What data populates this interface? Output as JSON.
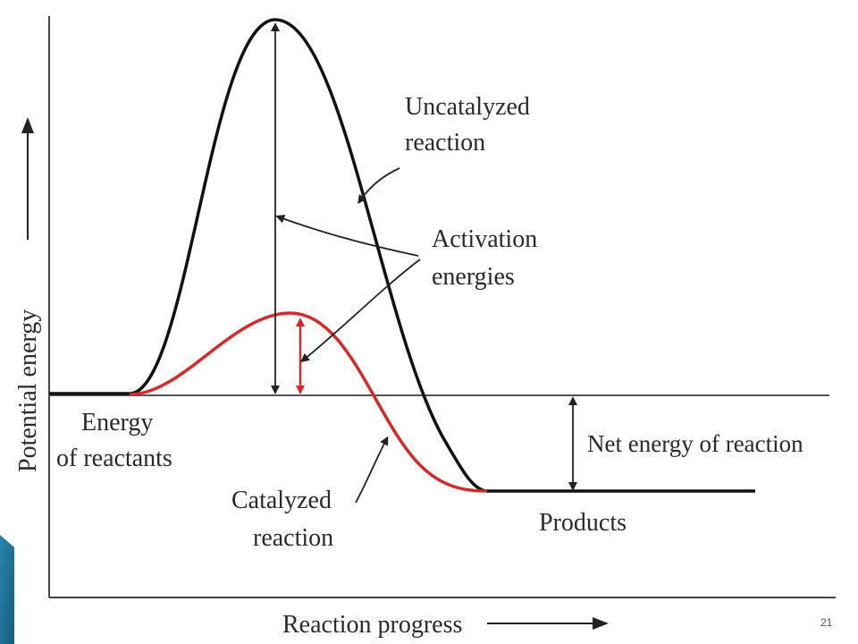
{
  "diagram": {
    "axes": {
      "y_label": "Potential energy",
      "x_label": "Reaction progress"
    },
    "labels": {
      "uncatalyzed_line1": "Uncatalyzed",
      "uncatalyzed_line2": "reaction",
      "activation_line1": "Activation",
      "activation_line2": "energies",
      "reactants_line1": "Energy",
      "reactants_line2": "of reactants",
      "catalyzed_line1": "Catalyzed",
      "catalyzed_line2": "reaction",
      "net_energy": "Net energy of reaction",
      "products": "Products"
    },
    "colors": {
      "uncatalyzed_curve": "#111111",
      "catalyzed_curve": "#d42a2a",
      "axis": "#333333",
      "slide_accent": "#1f6f95"
    }
  },
  "slide": {
    "page_number": "21"
  }
}
